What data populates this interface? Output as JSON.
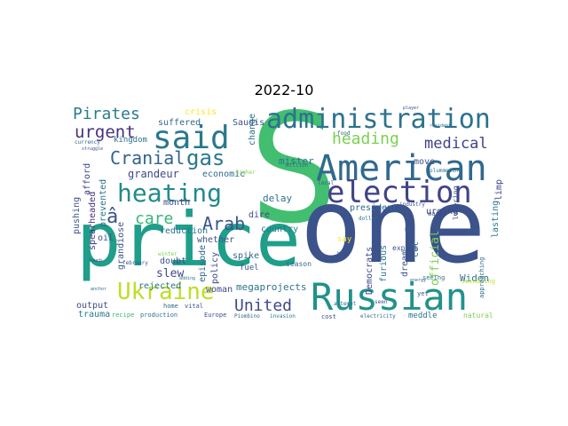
{
  "figure": {
    "title": "2022-10"
  },
  "words": {
    "s": "S",
    "one": "one",
    "price": "price",
    "russian": "Russian",
    "american": "American",
    "administration": "administration",
    "said": "said",
    "election": "election",
    "heating": "heating",
    "ukraine": "Ukraine",
    "pirates": "Pirates",
    "cranial": "Cranial",
    "gas": "gas",
    "heading": "heading",
    "medical": "medical",
    "urgent": "urgent",
    "united": "United",
    "arab": "Arab",
    "a_circ": "â",
    "care": "care",
    "grandeur": "grandeur",
    "economic": "economic",
    "crisis": "crisis",
    "saudis": "Saudis",
    "suffered": "suffered",
    "kingdom": "kingdom",
    "change": "change",
    "month": "month",
    "mister": "mister",
    "country": "country",
    "delay": "delay",
    "dire": "dire",
    "whether": "whether",
    "reduction": "reduction",
    "slew": "slew",
    "doubt": "doubt",
    "rejected": "rejected",
    "woman": "woman",
    "megaprojects": "megaprojects",
    "president": "president",
    "democrats": "Democrats",
    "furious": "furious",
    "dream": "dream",
    "cut": "cut",
    "official": "official",
    "urging": "urging",
    "widen": "Widen",
    "lasting": "lasting",
    "limp": "limp",
    "oil": "oil",
    "episode": "episode",
    "policy": "policy",
    "spike": "spike",
    "fuel": "fuel",
    "season": "season",
    "output": "output",
    "trauma": "trauma",
    "recipe": "recipe",
    "production": "production",
    "europe": "Europe",
    "piombino": "Piombino",
    "invasion": "invasion",
    "cost": "cost",
    "electricity": "electricity",
    "meddle": "meddle",
    "natural": "natural",
    "move": "move",
    "export": "export",
    "say": "say",
    "war": "war",
    "pushing": "pushing",
    "afford": "afford",
    "spearheaded": "spearheaded",
    "prevented": "prevented",
    "grandiose": "grandiose",
    "lowering": "lowering",
    "approaching": "approaching",
    "swindling": "swindling",
    "seeing": "seeing",
    "energy": "energy",
    "yet": "yet",
    "currency": "currency",
    "struggle": "struggle",
    "february": "february",
    "home": "home",
    "vital": "vital",
    "winter": "winter",
    "adding": "adding",
    "higher": "higher",
    "million": "million",
    "local": "local",
    "attempt": "attempt",
    "seen": "seen",
    "food": "food",
    "resident": "resident",
    "player": "player",
    "industry": "industry",
    "dollar": "dollar",
    "plummeting": "plummeting",
    "tiny": "tiny",
    "touch": "touch",
    "anchor": "anchor",
    "huge": "huge",
    "u": "U"
  }
}
